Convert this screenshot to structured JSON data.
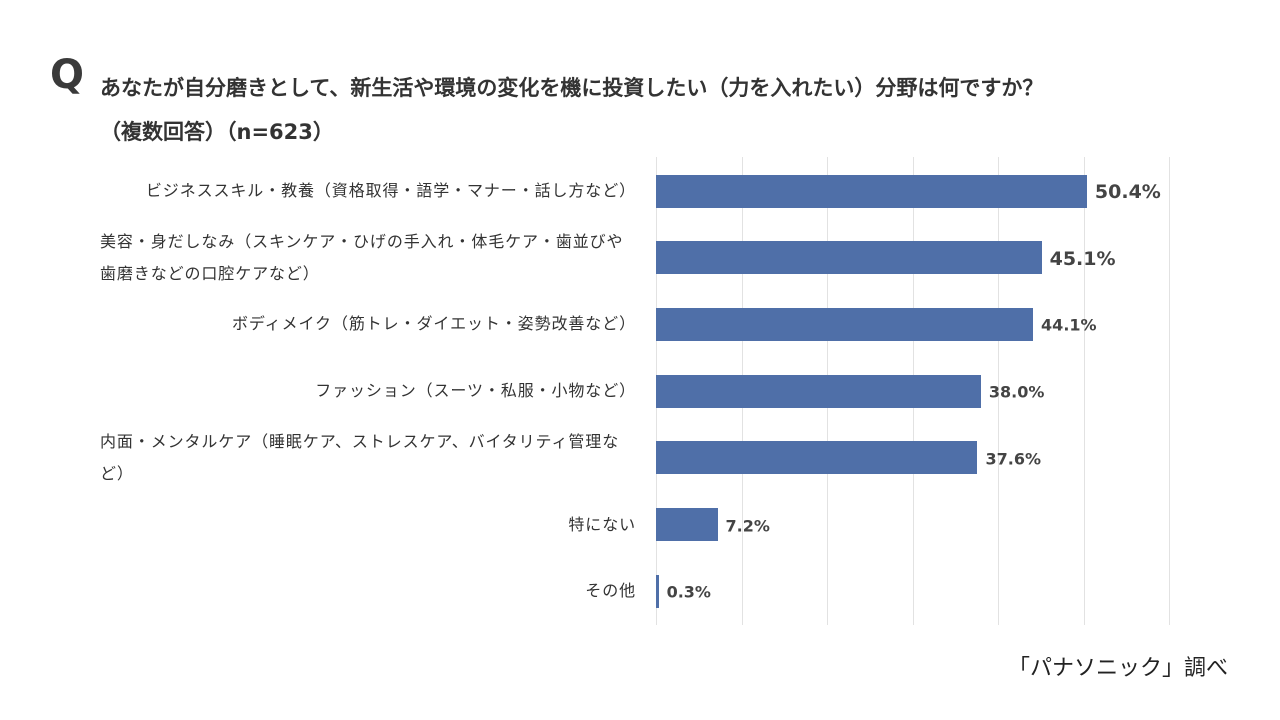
{
  "chart_data": {
    "type": "bar",
    "orientation": "horizontal",
    "title_marker": "Q",
    "title": "あなたが自分磨きとして、新生活や環境の変化を機に投資したい（力を入れたい）分野は何ですか？",
    "subtitle": "（複数回答）（n=623）",
    "source": "「パナソニック」調べ",
    "categories": [
      "ビジネススキル・教養（資格取得・語学・マナー・話し方など）",
      "美容・身だしなみ（スキンケア・ひげの手入れ・体毛ケア・歯並びや歯磨きなどの口腔ケアなど）",
      "ボディメイク（筋トレ・ダイエット・姿勢改善など）",
      "ファッション（スーツ・私服・小物など）",
      "内面・メンタルケア（睡眠ケア、ストレスケア、バイタリティ管理など）",
      "特にない",
      "その他"
    ],
    "values": [
      50.4,
      45.1,
      44.1,
      38.0,
      37.6,
      7.2,
      0.3
    ],
    "value_labels": [
      "50.4%",
      "45.1%",
      "44.1%",
      "38.0%",
      "37.6%",
      "7.2%",
      "0.3%"
    ],
    "color": "#4f6fa8",
    "xlim": [
      0,
      60
    ],
    "xticks": [
      0,
      10,
      20,
      30,
      40,
      50,
      60
    ],
    "grid": true
  }
}
